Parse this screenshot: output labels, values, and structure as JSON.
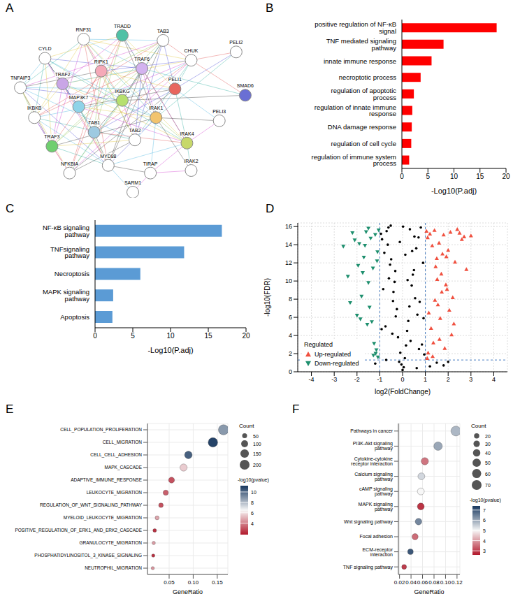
{
  "chart_data": [
    {
      "panel": "A",
      "type": "network",
      "nodes": [
        {
          "label": "RNF31",
          "color": "#ffffff"
        },
        {
          "label": "TRADD",
          "color": "#4fc1a6"
        },
        {
          "label": "TAB3",
          "color": "#ffffff"
        },
        {
          "label": "CYLD",
          "color": "#ffffff"
        },
        {
          "label": "CHUK",
          "color": "#ffffff"
        },
        {
          "label": "PELI2",
          "color": "#ffffff"
        },
        {
          "label": "SMAD6",
          "color": "#6a6fd4"
        },
        {
          "label": "TNFAIP3",
          "color": "#ffffff"
        },
        {
          "label": "TRAF2",
          "color": "#c9a6e6"
        },
        {
          "label": "RIPK1",
          "color": "#f5a9b8"
        },
        {
          "label": "TRAF6",
          "color": "#d3b2ef"
        },
        {
          "label": "PELI1",
          "color": "#e8665e"
        },
        {
          "label": "IKBKB",
          "color": "#ffffff"
        },
        {
          "label": "MAP3K7",
          "color": "#8fd3e8"
        },
        {
          "label": "IKBKG",
          "color": "#b6e06f"
        },
        {
          "label": "IRAK1",
          "color": "#f2c46d"
        },
        {
          "label": "PELI3",
          "color": "#ffffff"
        },
        {
          "label": "TRAF3",
          "color": "#6fcf6f"
        },
        {
          "label": "TAB1",
          "color": "#9ecae1"
        },
        {
          "label": "TAB2",
          "color": "#ffffff"
        },
        {
          "label": "IRAK4",
          "color": "#c7d86a"
        },
        {
          "label": "NFKBIA",
          "color": "#ffffff"
        },
        {
          "label": "MYD88",
          "color": "#ffffff"
        },
        {
          "label": "IRAK2",
          "color": "#ffffff"
        },
        {
          "label": "TIRAP",
          "color": "#ffffff"
        },
        {
          "label": "SARM1",
          "color": "#ffffff"
        }
      ]
    },
    {
      "panel": "B",
      "type": "bar",
      "orientation": "horizontal",
      "categories": [
        "positive regulation of NF-κB signal",
        "TNF mediated signaling pathway",
        "innate immune response",
        "necroptotic process",
        "regulation of apoptotic process",
        "regulation of innate immune response",
        "DNA damage response",
        "regulation of cell cycle",
        "regulation of immune system process"
      ],
      "values": [
        18.2,
        8,
        5.7,
        3.6,
        2.3,
        2.0,
        1.9,
        1.8,
        1.4
      ],
      "color": "#ff0000",
      "x_label": "-Log10(P.adj)",
      "xlim": [
        0,
        20
      ],
      "xticks": [
        0,
        5,
        10,
        15,
        20
      ],
      "grid": false
    },
    {
      "panel": "C",
      "type": "bar",
      "orientation": "horizontal",
      "categories": [
        "NF-κB signaling pathway",
        "TNFsignaling pathway",
        "Necroptosis",
        "MAPK signaling pathway",
        "Apoptosis"
      ],
      "values": [
        16.8,
        11.8,
        6.0,
        2.4,
        2.3
      ],
      "color": "#5b9bd5",
      "x_label": "-Log10(P.adj)",
      "xlim": [
        0,
        20
      ],
      "xticks": [
        0,
        5,
        10,
        15,
        20
      ],
      "grid": false
    },
    {
      "panel": "D",
      "type": "scatter",
      "x_label": "log2(FoldChange)",
      "y_label": "-log10(FDR)",
      "xlim": [
        -4.6,
        4.6
      ],
      "xticks": [
        -4,
        -3,
        -2,
        -1,
        0,
        1,
        2,
        3,
        4
      ],
      "ylim": [
        0,
        16.4
      ],
      "yticks": [
        0,
        2,
        4,
        6,
        8,
        10,
        12,
        14,
        16
      ],
      "grid": true,
      "legend": "lower left",
      "legend_title": "Regulated",
      "reference_lines": {
        "x": [
          -1,
          1
        ],
        "y": [
          1.3
        ]
      },
      "series": [
        {
          "color": "#000000",
          "marker": "circle",
          "x": [
            0,
            0.1,
            -0.1,
            0.2,
            -0.2,
            0.3,
            -0.3,
            0.4,
            -0.4,
            0.5,
            -0.5,
            0.6,
            -0.6,
            0.7,
            -0.7,
            0.8,
            -0.8,
            0.9,
            -0.9,
            0.05,
            -0.05,
            0.15,
            -0.15,
            0.25,
            -0.25,
            0.35,
            -0.35,
            0.45,
            -0.45,
            0.55,
            -0.55,
            0.65,
            -0.65,
            0.75,
            -0.75,
            0.85,
            -0.85,
            0.95,
            -0.95,
            0.02,
            1.2,
            1.5,
            -1.2,
            1.8,
            2.0,
            0.12,
            -0.12,
            0.32,
            -0.32,
            0.52,
            -0.52,
            0.72,
            -0.72,
            0.92,
            -0.92,
            0.62,
            -0.62,
            0.42,
            -0.42,
            0.22
          ],
          "y": [
            0.2,
            1.5,
            2.1,
            4.5,
            3.8,
            7.2,
            6.1,
            9.5,
            8.8,
            11.2,
            12.4,
            13.6,
            10.3,
            14.8,
            15.5,
            15.9,
            13.1,
            12.0,
            14.6,
            0.5,
            0.8,
            2.9,
            1.1,
            5.6,
            6.9,
            3.4,
            9.9,
            10.7,
            4.2,
            8.1,
            11.8,
            6.3,
            14.0,
            7.7,
            5.0,
            3.0,
            9.1,
            1.9,
            15.2,
            16.0,
            0.6,
            1.0,
            0.9,
            0.7,
            1.1,
            12.9,
            14.3,
            15.7,
            11.1,
            14.9,
            16.1,
            2.5,
            1.3,
            5.9,
            4.7,
            0.4,
            15.9,
            13.3,
            7.8,
            10.1
          ]
        },
        {
          "name": "Up-regulated",
          "color": "#f0503f",
          "marker": "triangle-up",
          "x": [
            1.05,
            1.1,
            1.2,
            1.3,
            1.4,
            1.5,
            1.6,
            1.7,
            1.8,
            1.9,
            2.0,
            2.1,
            2.2,
            2.3,
            2.4,
            2.6,
            2.8,
            3.0,
            1.15,
            1.25,
            1.35,
            1.45,
            1.55,
            1.65,
            1.75,
            1.85,
            1.95,
            2.05,
            2.15,
            2.5,
            1.12,
            1.32,
            1.52,
            1.72,
            1.92,
            2.25,
            1.08,
            1.42,
            1.62,
            2.7
          ],
          "y": [
            15.5,
            14.8,
            15.2,
            13.9,
            15.6,
            12.5,
            14.2,
            10.8,
            15.1,
            9.6,
            13.4,
            15.4,
            8.2,
            12.1,
            15.7,
            14.6,
            11.3,
            15.0,
            6.5,
            4.8,
            3.2,
            11.6,
            7.4,
            5.9,
            13.0,
            2.6,
            9.1,
            6.8,
            4.1,
            15.3,
            2.1,
            1.7,
            10.2,
            8.8,
            12.7,
            5.3,
            1.5,
            7.9,
            3.6,
            14.9
          ]
        },
        {
          "name": "Down-regulated",
          "color": "#1e8f6e",
          "marker": "triangle-down",
          "x": [
            -1.05,
            -1.1,
            -1.2,
            -1.3,
            -1.4,
            -1.5,
            -1.6,
            -1.7,
            -1.8,
            -1.9,
            -2.0,
            -2.2,
            -2.4,
            -2.6,
            -1.15,
            -1.25,
            -1.35,
            -1.45,
            -1.55,
            -1.65,
            -1.75,
            -1.85,
            -2.1,
            -1.08,
            -1.18,
            -1.28,
            -1.12,
            -1.5,
            -1.95,
            -2.3
          ],
          "y": [
            15.6,
            13.2,
            15.1,
            11.4,
            14.7,
            9.8,
            15.4,
            12.6,
            8.3,
            14.1,
            6.2,
            15.3,
            10.5,
            13.8,
            2.4,
            3.1,
            5.5,
            7.1,
            5.2,
            13.9,
            10.9,
            5.8,
            14.5,
            1.6,
            2.0,
            1.8,
            12.2,
            15.8,
            11.7,
            7.6
          ]
        }
      ]
    },
    {
      "panel": "E",
      "type": "dot",
      "categories": [
        "CELL_POPULATION_PROLIFERATION",
        "CELL_MIGRATION",
        "CELL_CELL_ADHESION",
        "MAPK_CASCADE",
        "ADAPTIVE_IMMUNE_RESPONSE",
        "LEUKOCYTE_MIGRATION",
        "REGULATION_OF_WNT_SIGNALING_PATHWAY",
        "MYELOID_LEUKOCYTE_MIGRATION",
        "POSITIVE_REGULATION_OF_ERK1_AND_ERK2_CASCADE",
        "GRANULOCYTE_MIGRATION",
        "PHOSPHATIDYLINOSITOL_3_KINASE_SIGNALING",
        "NEUTROPHIL_MIGRATION"
      ],
      "x": [
        0.163,
        0.141,
        0.09,
        0.08,
        0.055,
        0.043,
        0.033,
        0.025,
        0.02,
        0.018,
        0.017,
        0.016
      ],
      "counts": [
        220,
        190,
        121,
        108,
        74,
        58,
        45,
        34,
        27,
        24,
        23,
        22
      ],
      "neg_log10_pvalue": [
        8.8,
        10.9,
        10.2,
        5.6,
        3.0,
        3.3,
        3.0,
        4.8,
        2.3,
        4.6,
        2.3,
        4.4
      ],
      "x_label": "GeneRatio",
      "xlim": [
        0.005,
        0.172
      ],
      "xticks": [
        0.05,
        {
          "value": 0.1,
          "label": "0.10"
        },
        0.15
      ],
      "grid": true,
      "size_legend": {
        "title": "Count",
        "ticks": [
          50,
          100,
          150,
          200
        ]
      },
      "color_scale": {
        "title": "-log10(pvalue)",
        "range": [
          1.8,
          11.2
        ],
        "ticks": [
          4,
          6,
          8,
          10
        ],
        "colors": [
          "#b2182b",
          "#f7f7f7",
          "#17375e"
        ]
      }
    },
    {
      "panel": "F",
      "type": "dot",
      "categories": [
        "Pathways in cancer",
        "PI3K-Akt signaling pathway",
        "Cytokine-cytokine receptor interaction",
        "Calcium signaling pathway",
        "cAMP signaling pathway",
        "MAPK signaling pathway",
        "Wnt signaling pathway",
        "Focal adhesion",
        "ECM-receptor interaction",
        "TNF signaling pathway"
      ],
      "x": [
        0.118,
        0.087,
        0.064,
        0.058,
        0.057,
        0.057,
        0.053,
        0.047,
        0.039,
        0.028
      ],
      "counts": [
        72,
        53,
        39,
        35,
        35,
        35,
        32,
        28,
        23,
        17
      ],
      "neg_log10_pvalue": [
        5.8,
        6.0,
        3.6,
        5.4,
        5.0,
        2.9,
        6.4,
        3.5,
        7.0,
        3.0
      ],
      "x_label": "GeneRatio",
      "xlim": [
        0.018,
        0.125
      ],
      "xticks": [
        0.02,
        0.04,
        0.06,
        0.08,
        {
          "value": 0.1,
          "label": "0.10"
        },
        0.12
      ],
      "grid": true,
      "size_legend": {
        "title": "Count",
        "ticks": [
          20,
          30,
          40,
          50,
          60,
          70
        ]
      },
      "color_scale": {
        "title": "-log10(pvalue)",
        "range": [
          2.6,
          7.4
        ],
        "ticks": [
          3,
          4,
          5,
          6,
          7
        ],
        "colors": [
          "#b2182b",
          "#f7f7f7",
          "#17375e"
        ]
      }
    }
  ]
}
